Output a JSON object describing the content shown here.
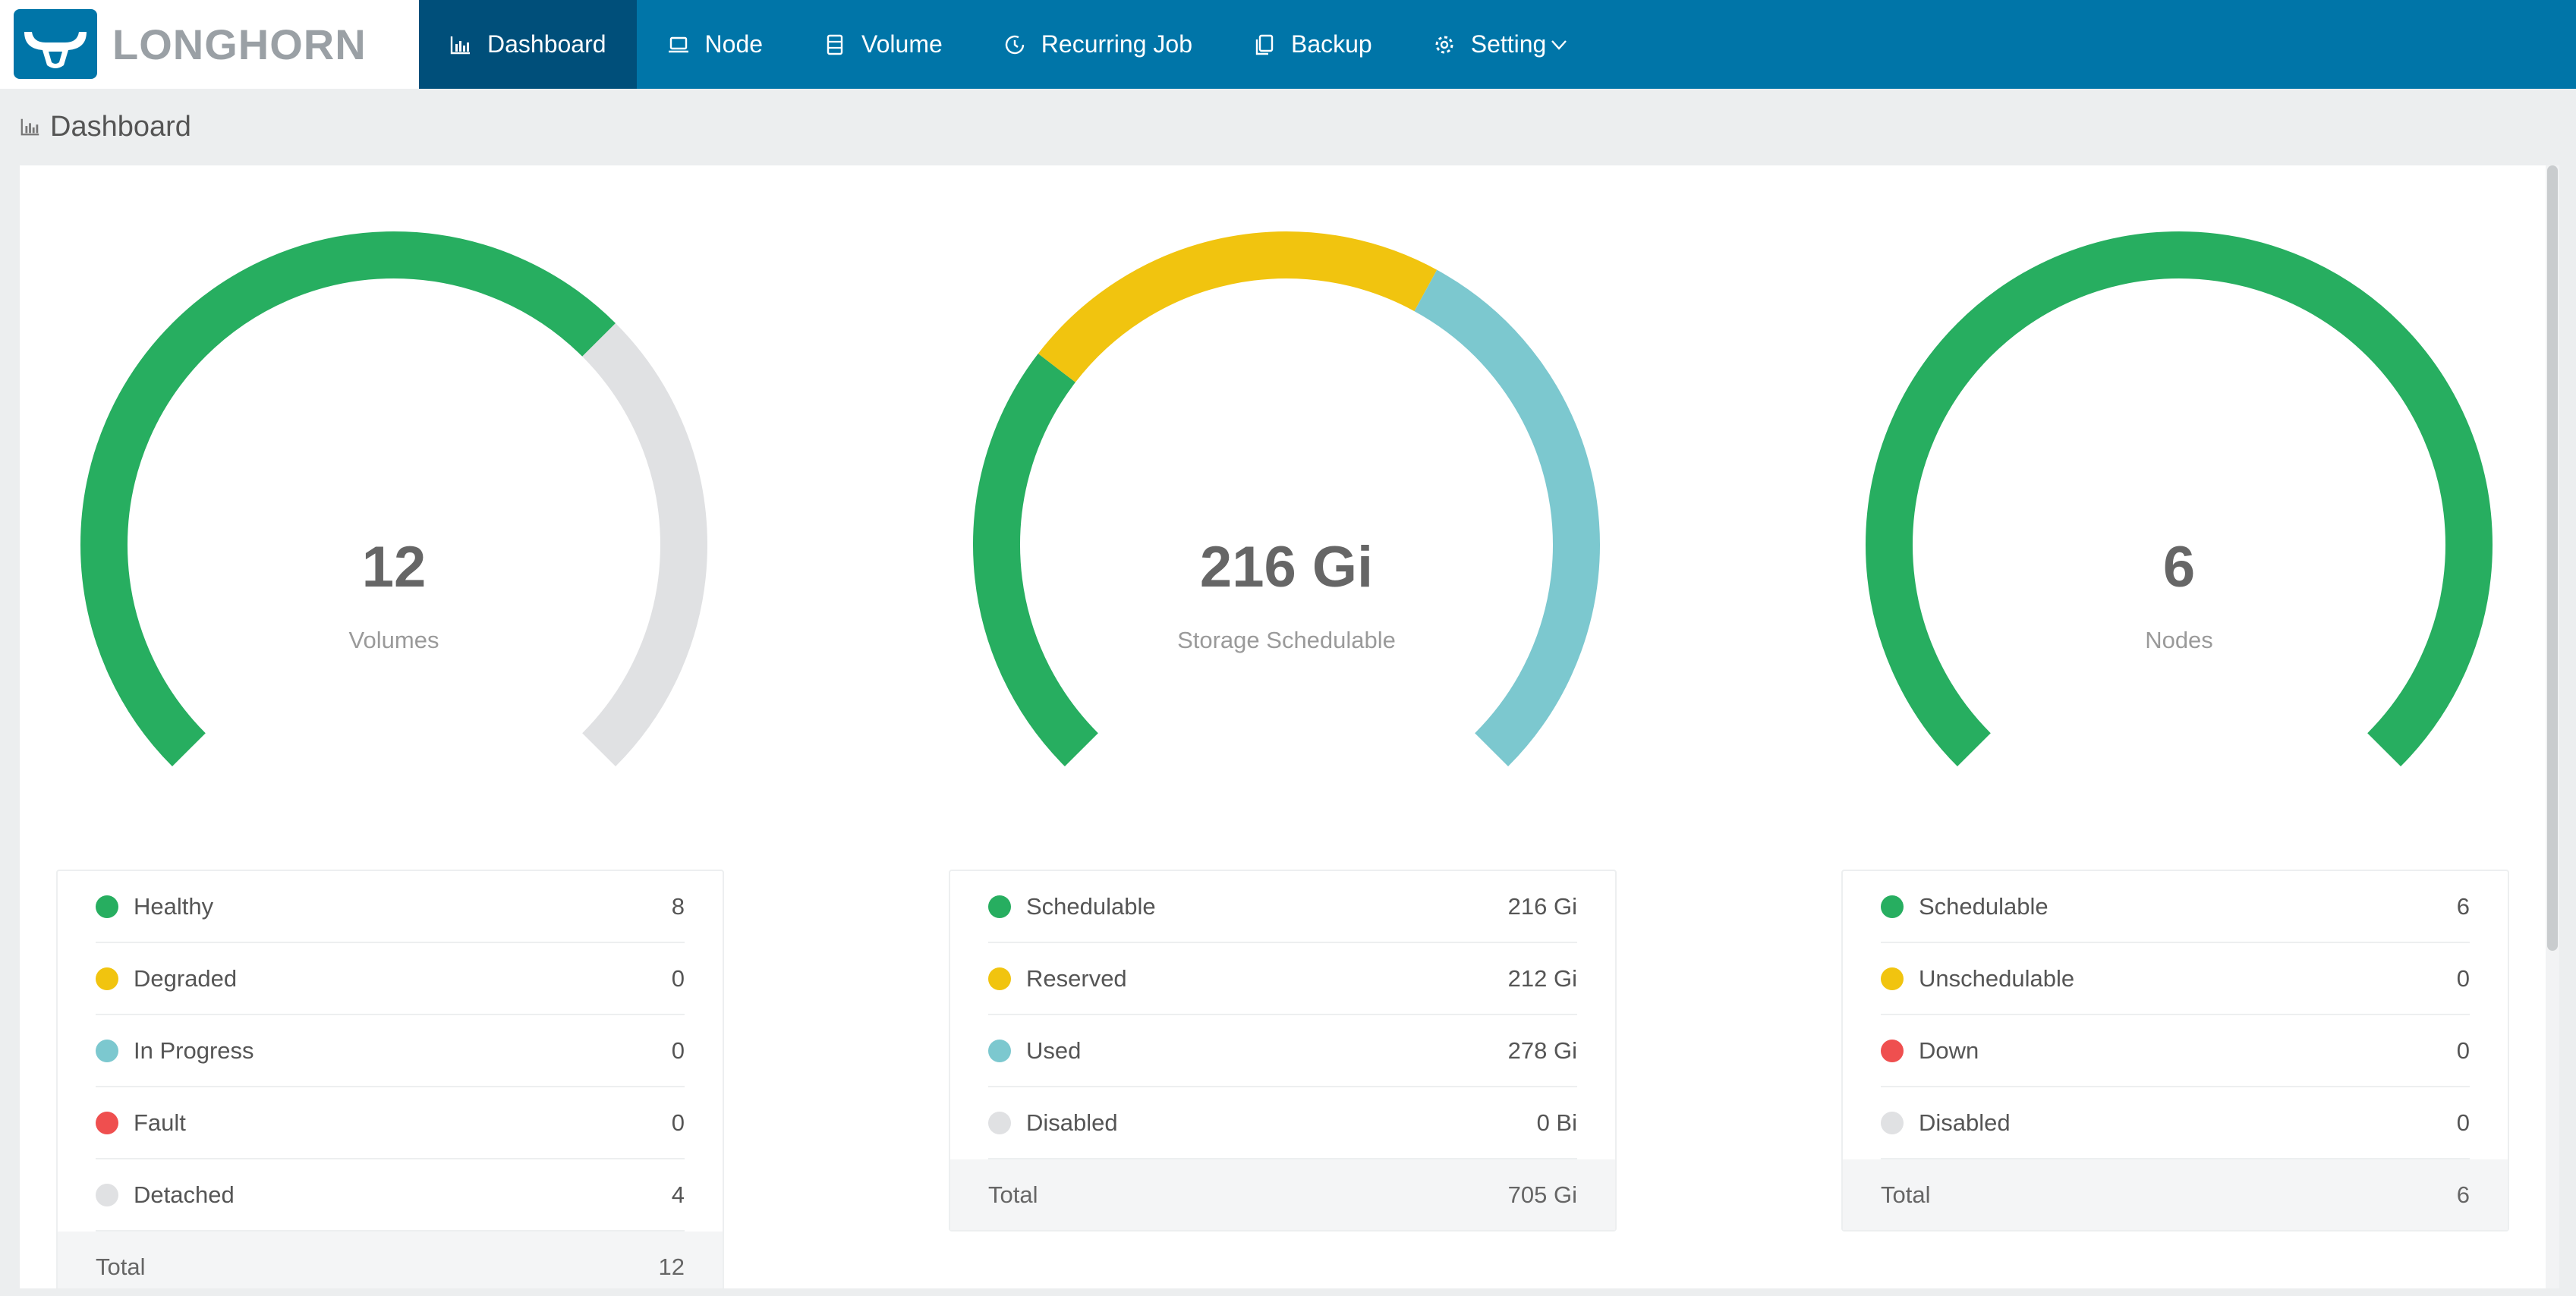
{
  "brand": {
    "name": "LONGHORN"
  },
  "nav": {
    "items": [
      {
        "label": "Dashboard",
        "icon": "bar-chart-icon",
        "active": true
      },
      {
        "label": "Node",
        "icon": "laptop-icon",
        "active": false
      },
      {
        "label": "Volume",
        "icon": "database-icon",
        "active": false
      },
      {
        "label": "Recurring Job",
        "icon": "clock-icon",
        "active": false
      },
      {
        "label": "Backup",
        "icon": "copy-icon",
        "active": false
      },
      {
        "label": "Setting",
        "icon": "gear-icon",
        "active": false
      }
    ]
  },
  "page": {
    "title": "Dashboard"
  },
  "colors": {
    "green": "#27ae60",
    "yellow": "#f1c40f",
    "cyan": "#7cc8cf",
    "red": "#ef4f4f",
    "gray": "#e0e1e3",
    "nav_blue": "#0075a8",
    "nav_active": "#004f7a"
  },
  "volumes": {
    "value": "12",
    "label": "Volumes",
    "rows": [
      {
        "label": "Healthy",
        "value": "8",
        "color": "#27ae60"
      },
      {
        "label": "Degraded",
        "value": "0",
        "color": "#f1c40f"
      },
      {
        "label": "In Progress",
        "value": "0",
        "color": "#7cc8cf"
      },
      {
        "label": "Fault",
        "value": "0",
        "color": "#ef4f4f"
      },
      {
        "label": "Detached",
        "value": "4",
        "color": "#e0e1e3"
      }
    ],
    "total_label": "Total",
    "total_value": "12"
  },
  "storage": {
    "value": "216 Gi",
    "label": "Storage Schedulable",
    "rows": [
      {
        "label": "Schedulable",
        "value": "216 Gi",
        "color": "#27ae60"
      },
      {
        "label": "Reserved",
        "value": "212 Gi",
        "color": "#f1c40f"
      },
      {
        "label": "Used",
        "value": "278 Gi",
        "color": "#7cc8cf"
      },
      {
        "label": "Disabled",
        "value": "0 Bi",
        "color": "#e0e1e3"
      }
    ],
    "total_label": "Total",
    "total_value": "705 Gi"
  },
  "nodes": {
    "value": "6",
    "label": "Nodes",
    "rows": [
      {
        "label": "Schedulable",
        "value": "6",
        "color": "#27ae60"
      },
      {
        "label": "Unschedulable",
        "value": "0",
        "color": "#f1c40f"
      },
      {
        "label": "Down",
        "value": "0",
        "color": "#ef4f4f"
      },
      {
        "label": "Disabled",
        "value": "0",
        "color": "#e0e1e3"
      }
    ],
    "total_label": "Total",
    "total_value": "6"
  },
  "chart_data": [
    {
      "type": "pie",
      "categories": [
        "Healthy",
        "Degraded",
        "In Progress",
        "Fault",
        "Detached"
      ],
      "values": [
        8,
        0,
        0,
        0,
        4
      ]
    },
    {
      "type": "pie",
      "categories": [
        "Schedulable",
        "Reserved",
        "Used",
        "Disabled"
      ],
      "values": [
        216,
        212,
        278,
        0
      ]
    },
    {
      "type": "pie",
      "categories": [
        "Schedulable",
        "Unschedulable",
        "Down",
        "Disabled"
      ],
      "values": [
        6,
        0,
        0,
        0
      ]
    }
  ]
}
